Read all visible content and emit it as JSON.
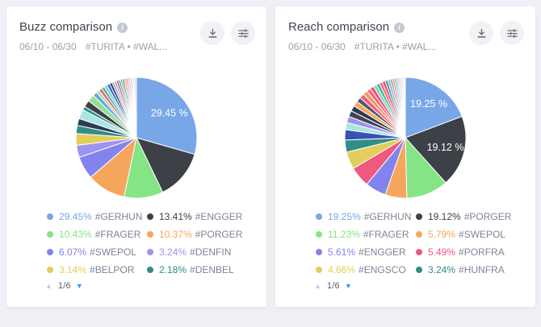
{
  "page": {
    "background": "#eff0f5",
    "card_background": "#ffffff"
  },
  "glyphs": {
    "info": "i",
    "page_up": "▲",
    "page_down": "▼"
  },
  "cards": [
    {
      "title": "Buzz comparison",
      "date_range": "06/10 - 06/30",
      "tags": "#TURITA • #WAL...",
      "pager": "1/6",
      "actions": {
        "download": "download-icon",
        "filter": "filter-icon"
      }
    },
    {
      "title": "Reach comparison",
      "date_range": "06/10 - 06/30",
      "tags": "#TURITA • #WAL...",
      "pager": "1/6",
      "actions": {
        "download": "download-icon",
        "filter": "filter-icon"
      }
    }
  ],
  "chart_data": [
    {
      "type": "pie",
      "title": "Buzz comparison",
      "legend_position": "bottom",
      "slices": [
        {
          "value": 29.45,
          "legend_pct": "29.45%",
          "tag": "#GERHUN",
          "color": "#78a7e8",
          "pie_label": "29.45 %"
        },
        {
          "value": 13.41,
          "legend_pct": "13.41%",
          "tag": "#ENGGER",
          "color": "#3e4047"
        },
        {
          "value": 10.43,
          "legend_pct": "10.43%",
          "tag": "#FRAGER",
          "color": "#85e485"
        },
        {
          "value": 10.37,
          "legend_pct": "10.37%",
          "tag": "#PORGER",
          "color": "#f6a65c"
        },
        {
          "value": 6.07,
          "legend_pct": "6.07%",
          "tag": "#SWEPOL",
          "color": "#8383ef"
        },
        {
          "value": 3.24,
          "legend_pct": "3.24%",
          "tag": "#DENFIN",
          "color": "#9d93f0"
        },
        {
          "value": 3.14,
          "legend_pct": "3.14%",
          "tag": "#BELPOR",
          "color": "#e2cf5b"
        },
        {
          "value": 2.18,
          "legend_pct": "2.18%",
          "tag": "#DENBEL",
          "color": "#318e86"
        }
      ],
      "others": [
        {
          "value": 1.86,
          "color": "#2c3a55"
        },
        {
          "value": 2.5,
          "color": "#a9e6e1"
        },
        {
          "value": 1.0,
          "color": "#318e86"
        },
        {
          "value": 1.8,
          "color": "#3e4047"
        },
        {
          "value": 1.9,
          "color": "#90e096"
        },
        {
          "value": 1.2,
          "color": "#6aa8da"
        },
        {
          "value": 0.8,
          "color": "#a5d6a7"
        },
        {
          "value": 0.9,
          "color": "#f0607c"
        },
        {
          "value": 0.8,
          "color": "#4ab98a"
        },
        {
          "value": 0.8,
          "color": "#6fd3e3"
        },
        {
          "value": 0.8,
          "color": "#3f63cc"
        },
        {
          "value": 0.7,
          "color": "#2c3a55"
        },
        {
          "value": 0.6,
          "color": "#9aa3ae"
        },
        {
          "value": 0.6,
          "color": "#a99df2"
        },
        {
          "value": 0.6,
          "color": "#e84c61"
        },
        {
          "value": 0.5,
          "color": "#2f9d8e"
        },
        {
          "value": 0.5,
          "color": "#62c462"
        },
        {
          "value": 0.5,
          "color": "#4a78d8"
        },
        {
          "value": 0.5,
          "color": "#f6a65c"
        },
        {
          "value": 0.4,
          "color": "#ef5350"
        },
        {
          "value": 0.4,
          "color": "#f48fb1"
        },
        {
          "value": 0.4,
          "color": "#b0b6bf"
        },
        {
          "value": 0.4,
          "color": "#c5bdf4"
        },
        {
          "value": 0.35,
          "color": "#a5e8c9"
        },
        {
          "value": 0.3,
          "color": "#f7b3c2"
        },
        {
          "value": 0.6,
          "color": "#e8e0d0"
        }
      ]
    },
    {
      "type": "pie",
      "title": "Reach comparison",
      "legend_position": "bottom",
      "slices": [
        {
          "value": 19.25,
          "legend_pct": "19.25%",
          "tag": "#GERHUN",
          "color": "#78a7e8",
          "pie_label": "19.25 %"
        },
        {
          "value": 19.12,
          "legend_pct": "19.12%",
          "tag": "#PORGER",
          "color": "#3e4047",
          "pie_label": "19.12 %"
        },
        {
          "value": 11.23,
          "legend_pct": "11.23%",
          "tag": "#FRAGER",
          "color": "#85e485"
        },
        {
          "value": 5.79,
          "legend_pct": "5.79%",
          "tag": "#SWEPOL",
          "color": "#f6a65c"
        },
        {
          "value": 5.61,
          "legend_pct": "5.61%",
          "tag": "#ENGGER",
          "color": "#8383ef"
        },
        {
          "value": 5.49,
          "legend_pct": "5.49%",
          "tag": "#PORFRA",
          "color": "#f0587e"
        },
        {
          "value": 4.66,
          "legend_pct": "4.66%",
          "tag": "#ENGSCO",
          "color": "#e2cf5b"
        },
        {
          "value": 3.24,
          "legend_pct": "3.24%",
          "tag": "#HUNFRA",
          "color": "#318e86"
        }
      ],
      "others": [
        {
          "value": 2.75,
          "color": "#3952b5"
        },
        {
          "value": 1.9,
          "color": "#a9e6e1"
        },
        {
          "value": 1.7,
          "color": "#9d93f0"
        },
        {
          "value": 1.6,
          "color": "#43454e"
        },
        {
          "value": 1.5,
          "color": "#2c3a55"
        },
        {
          "value": 1.4,
          "color": "#f6a65c"
        },
        {
          "value": 1.3,
          "color": "#55596a"
        },
        {
          "value": 1.3,
          "color": "#f0607c"
        },
        {
          "value": 1.2,
          "color": "#f09a5a"
        },
        {
          "value": 1.1,
          "color": "#f06292"
        },
        {
          "value": 1.0,
          "color": "#ef5350"
        },
        {
          "value": 0.9,
          "color": "#6fd3e3"
        },
        {
          "value": 0.9,
          "color": "#4ab98a"
        },
        {
          "value": 0.8,
          "color": "#f2647e"
        },
        {
          "value": 0.8,
          "color": "#e84c61"
        },
        {
          "value": 0.7,
          "color": "#2f9d8e"
        },
        {
          "value": 0.7,
          "color": "#a99df2"
        },
        {
          "value": 0.6,
          "color": "#62c462"
        },
        {
          "value": 0.6,
          "color": "#f48fb1"
        },
        {
          "value": 0.5,
          "color": "#9aa3ae"
        },
        {
          "value": 0.5,
          "color": "#80deea"
        },
        {
          "value": 0.45,
          "color": "#f7b3c2"
        },
        {
          "value": 0.4,
          "color": "#cdd3da"
        },
        {
          "value": 0.4,
          "color": "#e8e0d0"
        },
        {
          "value": 0.35,
          "color": "#b2dfdb"
        },
        {
          "value": 0.26,
          "color": "#f0ede4"
        }
      ]
    }
  ]
}
